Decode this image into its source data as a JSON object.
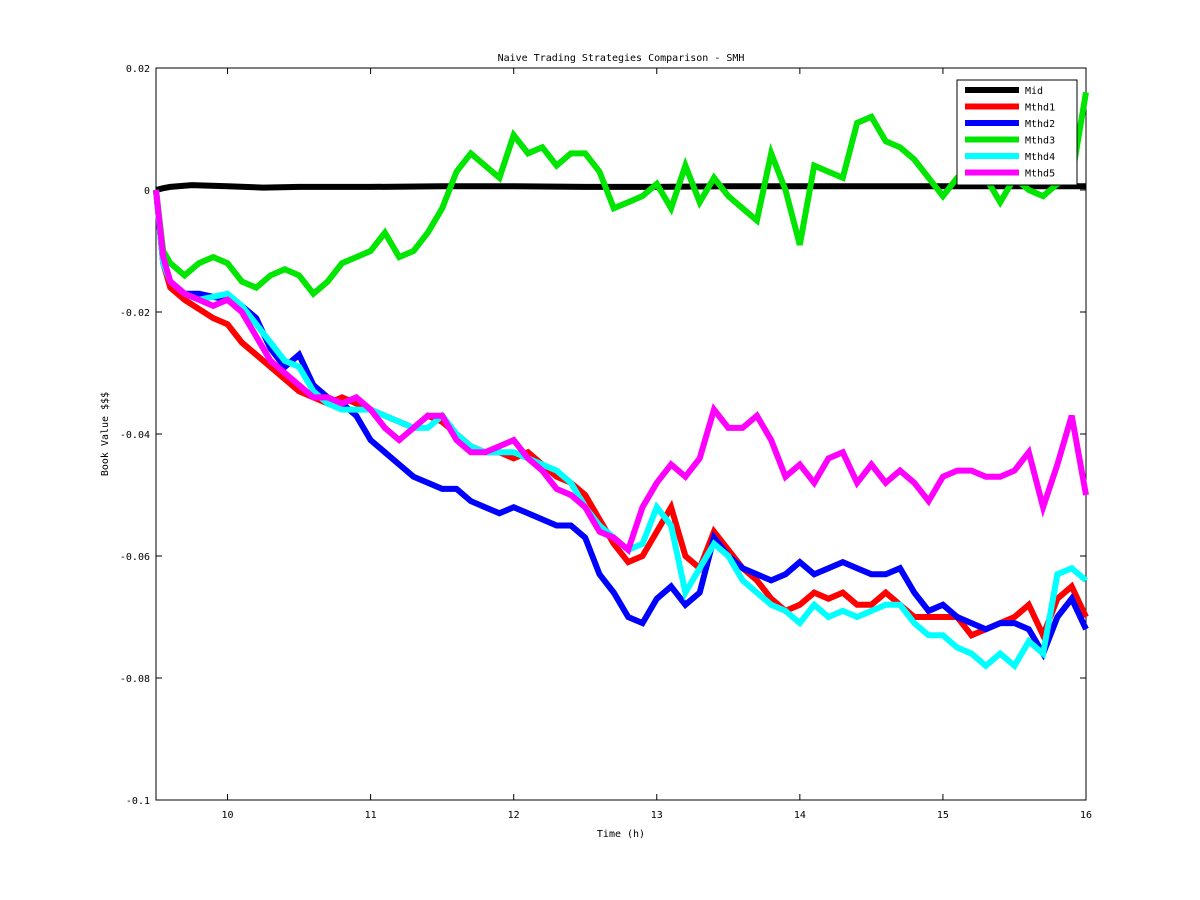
{
  "chart_data": {
    "type": "line",
    "title": "Naive Trading Strategies Comparison - SMH",
    "xlabel": "Time (h)",
    "ylabel": "Book Value $$$",
    "xlim": [
      9.5,
      16
    ],
    "ylim": [
      -0.1,
      0.02
    ],
    "xticks": [
      10,
      11,
      12,
      13,
      14,
      15,
      16
    ],
    "xtick_labels": [
      "10",
      "11",
      "12",
      "13",
      "14",
      "15",
      "16"
    ],
    "yticks": [
      -0.1,
      -0.08,
      -0.06,
      -0.04,
      -0.02,
      0,
      0.02
    ],
    "ytick_labels": [
      "-0.1",
      "-0.08",
      "-0.06",
      "-0.04",
      "-0.02",
      "0",
      "0.02"
    ],
    "grid": false,
    "legend_position": "top-right",
    "series": [
      {
        "name": "Mid",
        "color": "#000000",
        "x": [
          9.5,
          9.55,
          9.6,
          9.75,
          10.0,
          10.25,
          10.5,
          11.0,
          11.5,
          12.0,
          12.5,
          13.0,
          13.5,
          14.0,
          14.5,
          15.0,
          15.5,
          16.0
        ],
        "y": [
          0.0,
          0.0003,
          0.0005,
          0.0008,
          0.0006,
          0.0004,
          0.0005,
          0.0005,
          0.0006,
          0.0006,
          0.0005,
          0.0005,
          0.0006,
          0.0006,
          0.0006,
          0.0006,
          0.0006,
          0.0006
        ]
      },
      {
        "name": "Mthd1",
        "color": "#ff0000",
        "x": [
          9.5,
          9.55,
          9.6,
          9.7,
          9.8,
          9.9,
          10.0,
          10.1,
          10.2,
          10.3,
          10.4,
          10.5,
          10.6,
          10.7,
          10.8,
          10.9,
          11.0,
          11.1,
          11.2,
          11.3,
          11.4,
          11.5,
          11.6,
          11.7,
          11.8,
          11.9,
          12.0,
          12.1,
          12.2,
          12.3,
          12.4,
          12.5,
          12.6,
          12.7,
          12.8,
          12.9,
          13.0,
          13.1,
          13.2,
          13.3,
          13.4,
          13.5,
          13.6,
          13.7,
          13.8,
          13.9,
          14.0,
          14.1,
          14.2,
          14.3,
          14.4,
          14.5,
          14.6,
          14.7,
          14.8,
          14.9,
          15.0,
          15.1,
          15.2,
          15.3,
          15.4,
          15.5,
          15.6,
          15.7,
          15.8,
          15.9,
          16.0
        ],
        "y": [
          0.0,
          -0.012,
          -0.016,
          -0.018,
          -0.0195,
          -0.021,
          -0.022,
          -0.025,
          -0.027,
          -0.029,
          -0.031,
          -0.033,
          -0.034,
          -0.035,
          -0.034,
          -0.035,
          -0.036,
          -0.037,
          -0.038,
          -0.039,
          -0.037,
          -0.038,
          -0.04,
          -0.042,
          -0.043,
          -0.043,
          -0.044,
          -0.043,
          -0.045,
          -0.047,
          -0.048,
          -0.05,
          -0.054,
          -0.058,
          -0.061,
          -0.06,
          -0.056,
          -0.052,
          -0.06,
          -0.062,
          -0.056,
          -0.059,
          -0.062,
          -0.064,
          -0.067,
          -0.069,
          -0.068,
          -0.066,
          -0.067,
          -0.066,
          -0.068,
          -0.068,
          -0.066,
          -0.068,
          -0.07,
          -0.07,
          -0.07,
          -0.07,
          -0.073,
          -0.072,
          -0.071,
          -0.07,
          -0.068,
          -0.073,
          -0.067,
          -0.065,
          -0.07
        ]
      },
      {
        "name": "Mthd2",
        "color": "#0000ff",
        "x": [
          9.5,
          9.55,
          9.6,
          9.7,
          9.8,
          9.9,
          10.0,
          10.1,
          10.2,
          10.3,
          10.4,
          10.5,
          10.6,
          10.7,
          10.8,
          10.9,
          11.0,
          11.1,
          11.2,
          11.3,
          11.4,
          11.5,
          11.6,
          11.7,
          11.8,
          11.9,
          12.0,
          12.1,
          12.2,
          12.3,
          12.4,
          12.5,
          12.6,
          12.7,
          12.8,
          12.9,
          13.0,
          13.1,
          13.2,
          13.3,
          13.4,
          13.5,
          13.6,
          13.7,
          13.8,
          13.9,
          14.0,
          14.1,
          14.2,
          14.3,
          14.4,
          14.5,
          14.6,
          14.7,
          14.8,
          14.9,
          15.0,
          15.1,
          15.2,
          15.3,
          15.4,
          15.5,
          15.6,
          15.7,
          15.8,
          15.9,
          16.0
        ],
        "y": [
          0.0,
          -0.012,
          -0.015,
          -0.017,
          -0.017,
          -0.0175,
          -0.018,
          -0.019,
          -0.021,
          -0.026,
          -0.029,
          -0.027,
          -0.032,
          -0.034,
          -0.035,
          -0.037,
          -0.041,
          -0.043,
          -0.045,
          -0.047,
          -0.048,
          -0.049,
          -0.049,
          -0.051,
          -0.052,
          -0.053,
          -0.052,
          -0.053,
          -0.054,
          -0.055,
          -0.055,
          -0.057,
          -0.063,
          -0.066,
          -0.07,
          -0.071,
          -0.067,
          -0.065,
          -0.068,
          -0.066,
          -0.057,
          -0.06,
          -0.062,
          -0.063,
          -0.064,
          -0.063,
          -0.061,
          -0.063,
          -0.062,
          -0.061,
          -0.062,
          -0.063,
          -0.063,
          -0.062,
          -0.066,
          -0.069,
          -0.068,
          -0.07,
          -0.071,
          -0.072,
          -0.071,
          -0.071,
          -0.072,
          -0.076,
          -0.07,
          -0.067,
          -0.072
        ]
      },
      {
        "name": "Mthd3",
        "color": "#00e600",
        "x": [
          9.5,
          9.55,
          9.6,
          9.7,
          9.8,
          9.9,
          10.0,
          10.1,
          10.2,
          10.3,
          10.4,
          10.5,
          10.6,
          10.7,
          10.8,
          10.9,
          11.0,
          11.1,
          11.2,
          11.3,
          11.4,
          11.5,
          11.6,
          11.7,
          11.8,
          11.9,
          12.0,
          12.1,
          12.2,
          12.3,
          12.4,
          12.5,
          12.6,
          12.7,
          12.8,
          12.9,
          13.0,
          13.1,
          13.2,
          13.3,
          13.4,
          13.5,
          13.6,
          13.7,
          13.8,
          13.9,
          14.0,
          14.1,
          14.2,
          14.3,
          14.4,
          14.5,
          14.6,
          14.7,
          14.8,
          14.9,
          15.0,
          15.1,
          15.2,
          15.3,
          15.4,
          15.5,
          15.6,
          15.7,
          15.8,
          15.9,
          16.0
        ],
        "y": [
          0.0,
          -0.01,
          -0.012,
          -0.014,
          -0.012,
          -0.011,
          -0.012,
          -0.015,
          -0.016,
          -0.014,
          -0.013,
          -0.014,
          -0.017,
          -0.015,
          -0.012,
          -0.011,
          -0.01,
          -0.007,
          -0.011,
          -0.01,
          -0.007,
          -0.003,
          0.003,
          0.006,
          0.004,
          0.002,
          0.009,
          0.006,
          0.007,
          0.004,
          0.006,
          0.006,
          0.003,
          -0.003,
          -0.002,
          -0.001,
          0.001,
          -0.003,
          0.004,
          -0.002,
          0.002,
          -0.001,
          -0.003,
          -0.005,
          0.006,
          0.0,
          -0.009,
          0.004,
          0.003,
          0.002,
          0.011,
          0.012,
          0.008,
          0.007,
          0.005,
          0.002,
          -0.001,
          0.002,
          0.004,
          0.002,
          -0.002,
          0.002,
          0.0,
          -0.001,
          0.001,
          0.002,
          0.016
        ]
      },
      {
        "name": "Mthd4",
        "color": "#00ffff",
        "x": [
          9.5,
          9.55,
          9.6,
          9.7,
          9.8,
          9.9,
          10.0,
          10.1,
          10.2,
          10.3,
          10.4,
          10.5,
          10.6,
          10.7,
          10.8,
          10.9,
          11.0,
          11.1,
          11.2,
          11.3,
          11.4,
          11.5,
          11.6,
          11.7,
          11.8,
          11.9,
          12.0,
          12.1,
          12.2,
          12.3,
          12.4,
          12.5,
          12.6,
          12.7,
          12.8,
          12.9,
          13.0,
          13.1,
          13.2,
          13.3,
          13.4,
          13.5,
          13.6,
          13.7,
          13.8,
          13.9,
          14.0,
          14.1,
          14.2,
          14.3,
          14.4,
          14.5,
          14.6,
          14.7,
          14.8,
          14.9,
          15.0,
          15.1,
          15.2,
          15.3,
          15.4,
          15.5,
          15.6,
          15.7,
          15.8,
          15.9,
          16.0
        ],
        "y": [
          0.0,
          -0.012,
          -0.015,
          -0.017,
          -0.018,
          -0.0175,
          -0.017,
          -0.019,
          -0.022,
          -0.025,
          -0.028,
          -0.029,
          -0.033,
          -0.035,
          -0.036,
          -0.036,
          -0.036,
          -0.037,
          -0.038,
          -0.039,
          -0.039,
          -0.037,
          -0.04,
          -0.042,
          -0.043,
          -0.043,
          -0.043,
          -0.044,
          -0.045,
          -0.046,
          -0.048,
          -0.052,
          -0.055,
          -0.057,
          -0.059,
          -0.058,
          -0.052,
          -0.055,
          -0.066,
          -0.062,
          -0.058,
          -0.06,
          -0.064,
          -0.066,
          -0.068,
          -0.069,
          -0.071,
          -0.068,
          -0.07,
          -0.069,
          -0.07,
          -0.069,
          -0.068,
          -0.068,
          -0.071,
          -0.073,
          -0.073,
          -0.075,
          -0.076,
          -0.078,
          -0.076,
          -0.078,
          -0.074,
          -0.076,
          -0.063,
          -0.062,
          -0.064
        ]
      },
      {
        "name": "Mthd5",
        "color": "#ff00ff",
        "x": [
          9.5,
          9.55,
          9.6,
          9.7,
          9.8,
          9.9,
          10.0,
          10.1,
          10.2,
          10.3,
          10.4,
          10.5,
          10.6,
          10.7,
          10.8,
          10.9,
          11.0,
          11.1,
          11.2,
          11.3,
          11.4,
          11.5,
          11.6,
          11.7,
          11.8,
          11.9,
          12.0,
          12.1,
          12.2,
          12.3,
          12.4,
          12.5,
          12.6,
          12.7,
          12.8,
          12.9,
          13.0,
          13.1,
          13.2,
          13.3,
          13.4,
          13.5,
          13.6,
          13.7,
          13.8,
          13.9,
          14.0,
          14.1,
          14.2,
          14.3,
          14.4,
          14.5,
          14.6,
          14.7,
          14.8,
          14.9,
          15.0,
          15.1,
          15.2,
          15.3,
          15.4,
          15.5,
          15.6,
          15.7,
          15.8,
          15.9,
          16.0
        ],
        "y": [
          0.0,
          -0.011,
          -0.015,
          -0.017,
          -0.018,
          -0.019,
          -0.018,
          -0.02,
          -0.024,
          -0.028,
          -0.03,
          -0.032,
          -0.034,
          -0.034,
          -0.035,
          -0.034,
          -0.036,
          -0.039,
          -0.041,
          -0.039,
          -0.037,
          -0.037,
          -0.041,
          -0.043,
          -0.043,
          -0.042,
          -0.041,
          -0.044,
          -0.046,
          -0.049,
          -0.05,
          -0.052,
          -0.056,
          -0.057,
          -0.059,
          -0.052,
          -0.048,
          -0.045,
          -0.047,
          -0.044,
          -0.036,
          -0.039,
          -0.039,
          -0.037,
          -0.041,
          -0.047,
          -0.045,
          -0.048,
          -0.044,
          -0.043,
          -0.048,
          -0.045,
          -0.048,
          -0.046,
          -0.048,
          -0.051,
          -0.047,
          -0.046,
          -0.046,
          -0.047,
          -0.047,
          -0.046,
          -0.043,
          -0.052,
          -0.045,
          -0.037,
          -0.05
        ]
      }
    ]
  }
}
